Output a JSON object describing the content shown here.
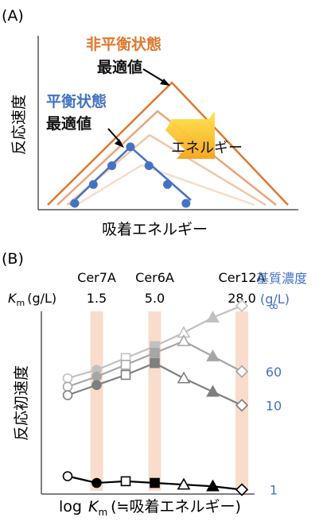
{
  "chart_data": [
    {
      "panel": "(A)",
      "type": "diagram",
      "ylabel": "反応速度",
      "xlabel": "吸着エネルギー",
      "annotations": {
        "nonequilibrium": "非平衡状態",
        "nonequilibrium_opt": "最適値",
        "equilibrium": "平衡状態",
        "equilibrium_opt": "最適値",
        "arrow_label": "エネルギー"
      },
      "colors": {
        "nonequilibrium": "#e0782e",
        "nonequilibrium_fade1": "#eaa47a",
        "nonequilibrium_fade2": "#f2c6a8",
        "nonequilibrium_fade3": "#f7ddcb",
        "equilibrium": "#4472c4",
        "arrow_top": "#ffe54a",
        "arrow_bottom": "#f6a21a"
      },
      "series": [
        {
          "name": "平衡状態",
          "x": [
            1,
            2,
            3,
            4,
            5,
            6,
            7
          ],
          "y": [
            1,
            2,
            3,
            4,
            3,
            2,
            1
          ]
        }
      ]
    },
    {
      "panel": "(B)",
      "type": "line",
      "ylabel": "反応初速度",
      "xlabel_main": "log",
      "xlabel_italic": "K",
      "xlabel_sub": "m",
      "xlabel_tail": "(≒吸着エネルギー)",
      "km_label_italic": "K",
      "km_label_sub": "m",
      "km_label_unit": "(g/L)",
      "enzymes": [
        {
          "name": "Cer7A",
          "km": "1.5"
        },
        {
          "name": "Cer6A",
          "km": "5.0"
        },
        {
          "name": "Cer12A",
          "km": "28.0"
        }
      ],
      "substrate_header_1": "基質濃度",
      "substrate_header_2": "(g/L)",
      "x_positions": [
        1,
        2,
        3,
        4,
        5,
        6,
        7
      ],
      "series": [
        {
          "name": "∞",
          "y": [
            4.1,
            4.35,
            4.7,
            5.05,
            5.45,
            5.9,
            6.25
          ],
          "color": "#c0c0c0",
          "markers": [
            "circle_open",
            "circle_filled",
            "square_open",
            "square_filled",
            "triangle_open",
            "triangle_filled",
            "diamond_open"
          ]
        },
        {
          "name": "60",
          "y": [
            3.85,
            4.15,
            4.5,
            4.85,
            5.2,
            4.75,
            4.3
          ],
          "color": "#a6a6a6",
          "markers": [
            "circle_open",
            "circle_filled",
            "square_open",
            "square_filled",
            "triangle_open",
            "triangle_filled",
            "diamond_open"
          ]
        },
        {
          "name": "10",
          "y": [
            3.6,
            3.9,
            4.2,
            4.55,
            4.1,
            3.7,
            3.3
          ],
          "color": "#7f7f7f",
          "markers": [
            "circle_open",
            "circle_filled",
            "square_open",
            "square_filled",
            "triangle_open",
            "triangle_filled",
            "diamond_open"
          ]
        },
        {
          "name": "1",
          "y": [
            1.2,
            1.0,
            1.05,
            1.0,
            0.95,
            0.9,
            0.8
          ],
          "color": "#000000",
          "markers": [
            "circle_open",
            "circle_filled",
            "square_open",
            "square_filled",
            "triangle_open",
            "triangle_filled",
            "diamond_open"
          ]
        }
      ],
      "highlight_positions": [
        2,
        4,
        7
      ],
      "colors": {
        "highlight": "#f9dccb",
        "substrate_text": "#4472c4"
      }
    }
  ]
}
